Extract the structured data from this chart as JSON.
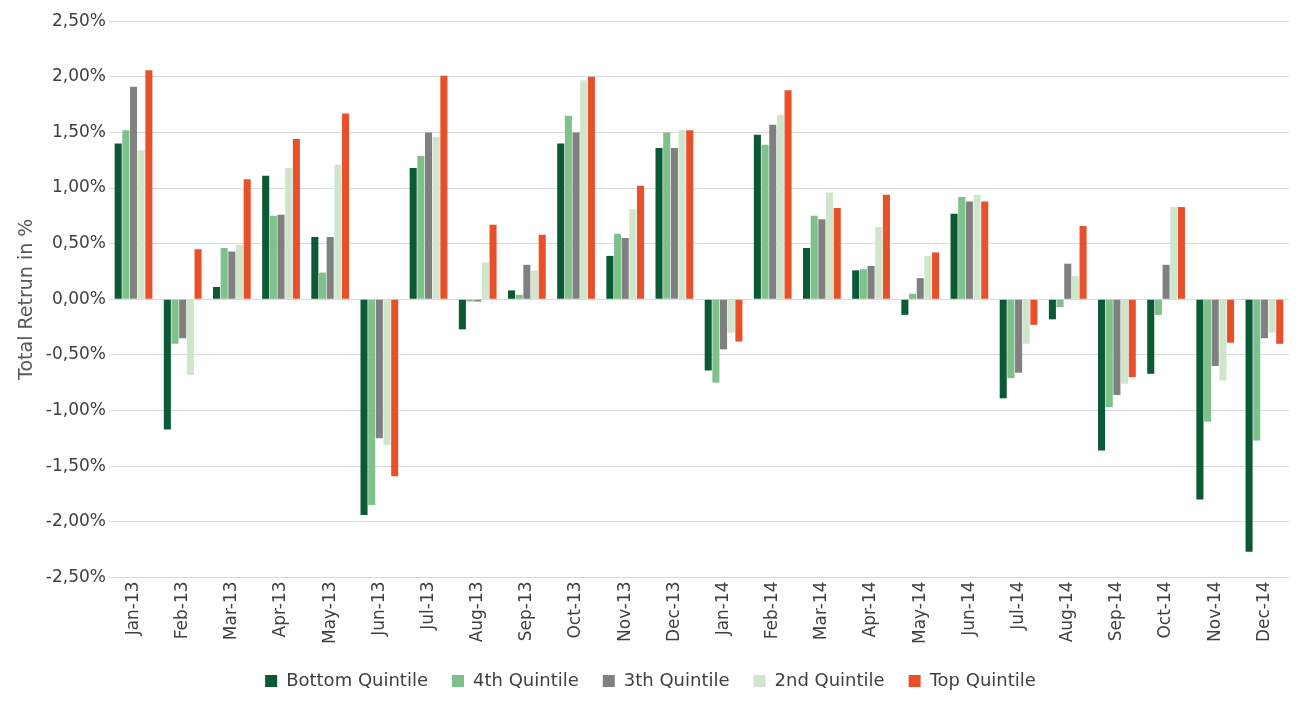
{
  "chart_data": {
    "type": "bar",
    "ylabel": "Total Retrun in %",
    "categories": [
      "Jan-13",
      "Feb-13",
      "Mar-13",
      "Apr-13",
      "May-13",
      "Jun-13",
      "Jul-13",
      "Aug-13",
      "Sep-13",
      "Oct-13",
      "Nov-13",
      "Dec-13",
      "Jan-14",
      "Feb-14",
      "Mar-14",
      "Apr-14",
      "May-14",
      "Jun-14",
      "Jul-14",
      "Aug-14",
      "Sep-14",
      "Oct-14",
      "Nov-14",
      "Dec-14"
    ],
    "series": [
      {
        "name": "Bottom Quintile",
        "color": "#0b5a35",
        "values": [
          1.4,
          -1.17,
          0.11,
          1.11,
          0.56,
          -1.94,
          1.18,
          -0.27,
          0.08,
          1.4,
          0.39,
          1.36,
          -0.64,
          1.48,
          0.46,
          0.26,
          -0.14,
          0.77,
          -0.89,
          -0.18,
          -1.36,
          -0.67,
          -1.8,
          -2.27
        ]
      },
      {
        "name": "4th Quintile",
        "color": "#7fc18a",
        "values": [
          1.52,
          -0.4,
          0.46,
          0.75,
          0.24,
          -1.85,
          1.29,
          -0.02,
          0.04,
          1.65,
          0.59,
          1.5,
          -0.75,
          1.39,
          0.75,
          0.27,
          0.05,
          0.92,
          -0.71,
          -0.07,
          -0.97,
          -0.14,
          -1.1,
          -1.27
        ]
      },
      {
        "name": "3th Quintile",
        "color": "#808080",
        "values": [
          1.91,
          -0.35,
          0.43,
          0.76,
          0.56,
          -1.25,
          1.5,
          -0.02,
          0.31,
          1.5,
          0.55,
          1.36,
          -0.45,
          1.57,
          0.72,
          0.3,
          0.19,
          0.88,
          -0.66,
          0.32,
          -0.86,
          0.31,
          -0.6,
          -0.35
        ]
      },
      {
        "name": "2nd Quintile",
        "color": "#cfe6cd",
        "values": [
          1.34,
          -0.68,
          0.49,
          1.18,
          1.21,
          -1.31,
          1.46,
          0.33,
          0.26,
          1.97,
          0.81,
          1.52,
          -0.3,
          1.66,
          0.96,
          0.65,
          0.39,
          0.94,
          -0.4,
          0.21,
          -0.76,
          0.83,
          -0.73,
          -0.3
        ]
      },
      {
        "name": "Top Quintile",
        "color": "#e8502a",
        "values": [
          2.06,
          0.45,
          1.08,
          1.44,
          1.67,
          -1.59,
          2.01,
          0.67,
          0.58,
          2.0,
          1.02,
          1.52,
          -0.38,
          1.88,
          0.82,
          0.94,
          0.42,
          0.88,
          -0.23,
          0.66,
          -0.7,
          0.83,
          -0.39,
          -0.4
        ]
      }
    ],
    "ylim": [
      -2.5,
      2.5
    ],
    "yticks": [
      {
        "value": -2.5,
        "label": "-2,50%"
      },
      {
        "value": -2,
        "label": "-2,00%"
      },
      {
        "value": -1.5,
        "label": "-1,50%"
      },
      {
        "value": -1,
        "label": "-1,00%"
      },
      {
        "value": -0.5,
        "label": "-0,50%"
      },
      {
        "value": 0,
        "label": "0,00%"
      },
      {
        "value": 0.5,
        "label": "0,50%"
      },
      {
        "value": 1,
        "label": "1,00%"
      },
      {
        "value": 1.5,
        "label": "1,50%"
      },
      {
        "value": 2,
        "label": "2,00%"
      },
      {
        "value": 2.5,
        "label": "2,50%"
      }
    ],
    "grid": "y",
    "legend": "bottom"
  }
}
